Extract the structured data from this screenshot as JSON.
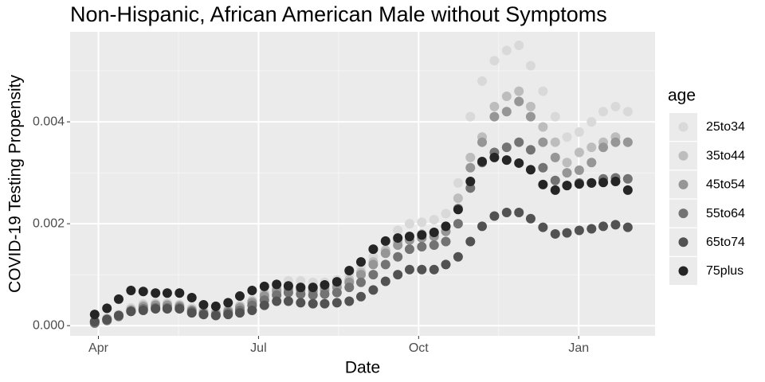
{
  "chart_data": {
    "type": "scatter",
    "title": "Non-Hispanic, African American Male without Symptoms",
    "x_label": "Date",
    "y_label": "COVID-19 Testing Propensity",
    "legend_title": "age",
    "legend_position": "right",
    "grid": true,
    "xlim": [
      3.47,
      14.43
    ],
    "ylim": [
      -0.0002,
      0.005766
    ],
    "xticks": [
      {
        "value": 4,
        "label": "Apr"
      },
      {
        "value": 7,
        "label": "Jul"
      },
      {
        "value": 10,
        "label": "Oct"
      },
      {
        "value": 13,
        "label": "Jan"
      }
    ],
    "yticks": [
      {
        "value": 0,
        "label": "0.000"
      },
      {
        "value": 0.002,
        "label": "0.002"
      },
      {
        "value": 0.004,
        "label": "0.004"
      }
    ],
    "x": [
      3.93,
      4.16,
      4.38,
      4.61,
      4.84,
      5.07,
      5.29,
      5.52,
      5.75,
      5.97,
      6.2,
      6.43,
      6.65,
      6.88,
      7.11,
      7.34,
      7.56,
      7.79,
      8.02,
      8.24,
      8.47,
      8.7,
      8.92,
      9.15,
      9.38,
      9.61,
      9.83,
      10.06,
      10.29,
      10.51,
      10.74,
      10.97,
      11.19,
      11.42,
      11.65,
      11.88,
      12.1,
      12.33,
      12.56,
      12.78,
      13.01,
      13.24,
      13.46,
      13.69,
      13.92
    ],
    "series": [
      {
        "name": "25to34",
        "color": "#d9d9d9",
        "values": [
          0.0001,
          0.00015,
          0.00022,
          0.00035,
          0.00043,
          0.00045,
          0.00045,
          0.00042,
          0.00035,
          0.0003,
          0.00028,
          0.00033,
          0.0004,
          0.0005,
          0.00065,
          0.00078,
          0.00088,
          0.00088,
          0.00085,
          0.00085,
          0.0009,
          0.001,
          0.00115,
          0.00135,
          0.00165,
          0.00187,
          0.002,
          0.00203,
          0.00208,
          0.0022,
          0.0028,
          0.0041,
          0.0048,
          0.0052,
          0.0054,
          0.0055,
          0.0051,
          0.0046,
          0.0041,
          0.0037,
          0.0038,
          0.004,
          0.0042,
          0.0043,
          0.0042
        ]
      },
      {
        "name": "35to44",
        "color": "#bdbdbd",
        "values": [
          8e-05,
          0.00013,
          0.0002,
          0.00032,
          0.0004,
          0.00042,
          0.00042,
          0.0004,
          0.00032,
          0.00027,
          0.00025,
          0.0003,
          0.00038,
          0.00048,
          0.00062,
          0.00072,
          0.00078,
          0.00075,
          0.00073,
          0.00075,
          0.0008,
          0.0009,
          0.00105,
          0.00125,
          0.00148,
          0.00165,
          0.00175,
          0.0018,
          0.00182,
          0.00195,
          0.0025,
          0.0033,
          0.0037,
          0.0043,
          0.0045,
          0.0046,
          0.0043,
          0.0039,
          0.0036,
          0.0032,
          0.0034,
          0.0035,
          0.0036,
          0.0037,
          0.0036
        ]
      },
      {
        "name": "45to54",
        "color": "#969696",
        "values": [
          8e-05,
          0.00013,
          0.0002,
          0.0003,
          0.00037,
          0.0004,
          0.0004,
          0.00038,
          0.0003,
          0.00025,
          0.00023,
          0.00028,
          0.00035,
          0.00045,
          0.00058,
          0.00068,
          0.00072,
          0.0007,
          0.00068,
          0.0007,
          0.00075,
          0.00085,
          0.001,
          0.0012,
          0.00142,
          0.00158,
          0.00168,
          0.00172,
          0.00175,
          0.00185,
          0.0023,
          0.0031,
          0.0036,
          0.0041,
          0.0042,
          0.0044,
          0.0041,
          0.0036,
          0.0033,
          0.003,
          0.00305,
          0.0032,
          0.0035,
          0.0036,
          0.0036
        ]
      },
      {
        "name": "55to64",
        "color": "#737373",
        "values": [
          5e-05,
          0.0001,
          0.00018,
          0.00028,
          0.00033,
          0.00035,
          0.00035,
          0.00035,
          0.00028,
          0.00022,
          0.0002,
          0.00025,
          0.0003,
          0.0004,
          0.0005,
          0.0006,
          0.00065,
          0.00062,
          0.0006,
          0.00062,
          0.00065,
          0.00075,
          0.00085,
          0.001,
          0.0012,
          0.00135,
          0.0015,
          0.00155,
          0.00158,
          0.00165,
          0.002,
          0.0027,
          0.0032,
          0.0034,
          0.0035,
          0.0036,
          0.00345,
          0.0031,
          0.00285,
          0.00275,
          0.0028,
          0.0028,
          0.00288,
          0.0029,
          0.00288
        ]
      },
      {
        "name": "65to74",
        "color": "#525252",
        "values": [
          8e-05,
          0.00012,
          0.0002,
          0.00028,
          0.0003,
          0.00033,
          0.00033,
          0.00033,
          0.00025,
          0.00022,
          0.0002,
          0.00022,
          0.00025,
          0.0003,
          0.0004,
          0.00048,
          0.00048,
          0.00045,
          0.00043,
          0.00043,
          0.00045,
          0.00048,
          0.00057,
          0.0007,
          0.00087,
          0.001,
          0.0011,
          0.0011,
          0.0011,
          0.0012,
          0.00135,
          0.00165,
          0.00195,
          0.00215,
          0.00222,
          0.00222,
          0.0021,
          0.00193,
          0.0018,
          0.00182,
          0.00187,
          0.0019,
          0.00195,
          0.00198,
          0.00193
        ]
      },
      {
        "name": "75plus",
        "color": "#252525",
        "values": [
          0.00022,
          0.00034,
          0.00052,
          0.00069,
          0.00067,
          0.00064,
          0.00064,
          0.00064,
          0.00055,
          0.00041,
          0.00038,
          0.00045,
          0.00058,
          0.00069,
          0.00077,
          0.00081,
          0.00078,
          0.00075,
          0.00075,
          0.0008,
          0.00086,
          0.00108,
          0.00125,
          0.0015,
          0.00166,
          0.00172,
          0.00175,
          0.00178,
          0.00183,
          0.00195,
          0.00228,
          0.00283,
          0.00322,
          0.0033,
          0.00325,
          0.00319,
          0.00306,
          0.00277,
          0.00266,
          0.00275,
          0.00278,
          0.0028,
          0.00281,
          0.00283,
          0.00266
        ]
      }
    ]
  }
}
